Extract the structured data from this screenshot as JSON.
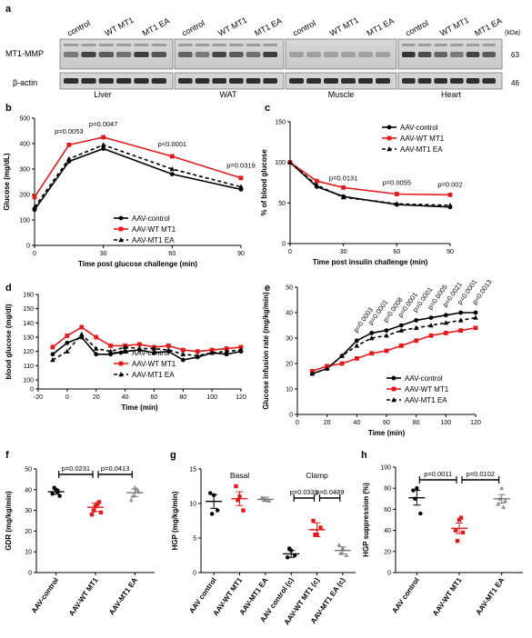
{
  "panel_labels": {
    "a": "a",
    "b": "b",
    "c": "c",
    "d": "d",
    "e": "e",
    "f": "f",
    "g": "g",
    "h": "h"
  },
  "colors": {
    "control": "#000000",
    "wt": "#e31a1c",
    "ea": "#000000",
    "ea_scatter": "#999999"
  },
  "a": {
    "lane_labels": [
      "control",
      "WT MT1",
      "MT1 EA"
    ],
    "row_labels": [
      "MT1-MMP",
      "β-actin"
    ],
    "tissues": [
      "Liver",
      "WAT",
      "Muscle",
      "Heart"
    ],
    "kda_label": "(kDa)",
    "kda_values": [
      "63",
      "46"
    ]
  },
  "series_names": [
    "AAV-control",
    "AAV-WT MT1",
    "AAV-MT1 EA"
  ],
  "chart_data": [
    {
      "panel": "b",
      "type": "line",
      "xlabel": "Time post glucose challenge (min)",
      "ylabel": "Glucose (mg/dL)",
      "xlim": [
        0,
        90
      ],
      "ylim": [
        0,
        500
      ],
      "xticks": [
        0,
        30,
        60,
        90
      ],
      "yticks": [
        0,
        100,
        200,
        300,
        400,
        500
      ],
      "x": [
        0,
        15,
        30,
        60,
        90
      ],
      "series": [
        {
          "name": "AAV-control",
          "values": [
            140,
            330,
            380,
            280,
            220
          ]
        },
        {
          "name": "AAV-WT MT1",
          "values": [
            190,
            395,
            425,
            350,
            265
          ]
        },
        {
          "name": "AAV-MT1 EA",
          "values": [
            150,
            340,
            395,
            300,
            230
          ]
        }
      ],
      "annotations": [
        {
          "text": "p=0.0053",
          "x": 15,
          "y": 440
        },
        {
          "text": "p=0.0047",
          "x": 30,
          "y": 468
        },
        {
          "text": "p<0.0001",
          "x": 60,
          "y": 390
        },
        {
          "text": "p=0.0319",
          "x": 90,
          "y": 305
        }
      ]
    },
    {
      "panel": "c",
      "type": "line",
      "xlabel": "Time post insulin challenge (min)",
      "ylabel": "% of blood glucose",
      "xlim": [
        0,
        90
      ],
      "ylim": [
        0,
        150
      ],
      "xticks": [
        0,
        30,
        60,
        90
      ],
      "yticks": [
        0,
        50,
        100,
        150
      ],
      "x": [
        0,
        15,
        30,
        60,
        90
      ],
      "series": [
        {
          "name": "AAV-control",
          "values": [
            100,
            70,
            58,
            48,
            45
          ]
        },
        {
          "name": "AAV-WT MT1",
          "values": [
            100,
            77,
            69,
            61,
            60
          ]
        },
        {
          "name": "AAV-MT1 EA",
          "values": [
            100,
            72,
            57,
            49,
            47
          ]
        }
      ],
      "annotations": [
        {
          "text": "p=0.0131",
          "x": 30,
          "y": 78
        },
        {
          "text": "p=0.0055",
          "x": 60,
          "y": 72
        },
        {
          "text": "p=0.002",
          "x": 90,
          "y": 70
        }
      ]
    },
    {
      "panel": "d",
      "type": "line",
      "xlabel": "Time (min)",
      "ylabel": "blood glucose (mg/dl)",
      "xlim": [
        -20,
        120
      ],
      "ylim": [
        0,
        160
      ],
      "xticks": [
        -20,
        0,
        20,
        40,
        60,
        80,
        100,
        120
      ],
      "yticks": [
        0,
        100,
        110,
        120,
        130,
        140,
        150,
        160
      ],
      "x": [
        -10,
        0,
        10,
        20,
        30,
        40,
        50,
        60,
        70,
        80,
        90,
        100,
        110,
        120
      ],
      "series": [
        {
          "name": "AAV-control",
          "values": [
            118,
            126,
            130,
            118,
            118,
            120,
            121,
            119,
            120,
            114,
            116,
            119,
            118,
            120
          ]
        },
        {
          "name": "AAV-WT MT1",
          "values": [
            123,
            131,
            137,
            130,
            124,
            124,
            125,
            123,
            124,
            121,
            120,
            121,
            122,
            123
          ]
        },
        {
          "name": "AAV-MT1 EA",
          "values": [
            114,
            120,
            132,
            122,
            120,
            123,
            122,
            122,
            121,
            118,
            117,
            119,
            120,
            121
          ]
        }
      ]
    },
    {
      "panel": "e",
      "type": "line",
      "xlabel": "Time (min)",
      "ylabel": "Glucose infusion rate (mg/kg/min)",
      "xlim": [
        0,
        120
      ],
      "ylim": [
        0,
        50
      ],
      "xticks": [
        0,
        20,
        40,
        60,
        80,
        100,
        120
      ],
      "yticks": [
        0,
        10,
        20,
        30,
        40,
        50
      ],
      "x": [
        10,
        20,
        30,
        40,
        50,
        60,
        70,
        80,
        90,
        100,
        110,
        120
      ],
      "series": [
        {
          "name": "AAV-control",
          "values": [
            16,
            18,
            23,
            29,
            32,
            33,
            35,
            37,
            38,
            39,
            40,
            40
          ]
        },
        {
          "name": "AAV-WT MT1",
          "values": [
            17,
            19,
            20,
            22,
            24,
            25,
            27,
            29,
            31,
            32,
            33,
            34
          ]
        },
        {
          "name": "AAV-MT1 EA",
          "values": [
            16,
            18,
            23,
            27,
            30,
            31,
            33,
            34,
            35,
            36,
            37,
            38
          ]
        }
      ],
      "annotations": [
        "p=0.0003",
        "p=0.0001",
        "p=0.0008",
        "p=0.0001",
        "p=0.0001",
        "p=0.0005",
        "p=0.0021",
        "p=0.0001",
        "p=0.0013"
      ]
    },
    {
      "panel": "f",
      "type": "scatter",
      "ylabel": "GDR (mg/kg/min)",
      "ylim": [
        0,
        50
      ],
      "yticks": [
        0,
        10,
        20,
        30,
        40,
        50
      ],
      "categories": [
        "AAV-control",
        "AAV-WT MT1",
        "AAV-MT1 EA"
      ],
      "means": [
        39,
        31.5,
        38.5
      ],
      "sems": [
        1.2,
        2,
        1.8
      ],
      "points": [
        [
          38,
          40,
          37,
          41,
          39
        ],
        [
          28,
          32,
          34,
          30,
          33,
          29
        ],
        [
          35,
          41,
          39,
          37,
          40
        ]
      ],
      "brackets": [
        {
          "text": "p=0.0231",
          "from": 0,
          "to": 1
        },
        {
          "text": "p=0.0413",
          "from": 1,
          "to": 2
        }
      ]
    },
    {
      "panel": "g",
      "type": "scatter",
      "ylabel": "HGP (mg/kg/min)",
      "ylim": [
        0,
        15
      ],
      "yticks": [
        0,
        5,
        10,
        15
      ],
      "group_labels": [
        "Basal",
        "Clamp"
      ],
      "categories": [
        "AAV control",
        "AAV-WT MT1",
        "AAV-MT1 EA",
        "AAV control (c)",
        "AAV-WT MT1 (c)",
        "AAV-MT1 EA (c)"
      ],
      "means": [
        10.3,
        10.7,
        10.6,
        2.7,
        6.2,
        3.2
      ],
      "sems": [
        1,
        1,
        0.3,
        0.5,
        1,
        0.5
      ],
      "points": [
        [
          11.5,
          11.2,
          9,
          8.5
        ],
        [
          12.5,
          11,
          9,
          10.5
        ],
        [
          10.8,
          10.6,
          10.4,
          10.7
        ],
        [
          2.2,
          3.2,
          2.5,
          3.5
        ],
        [
          7.5,
          5.5,
          6.5,
          5.5
        ],
        [
          4,
          3.5,
          2.5,
          2.8
        ]
      ],
      "brackets": [
        {
          "text": "p=0.0333",
          "from": 3,
          "to": 4
        },
        {
          "text": "p=0.0489",
          "from": 4,
          "to": 5
        }
      ]
    },
    {
      "panel": "h",
      "type": "scatter",
      "ylabel": "HGP suppression (%)",
      "ylim": [
        0,
        100
      ],
      "yticks": [
        0,
        20,
        40,
        60,
        80,
        100
      ],
      "categories": [
        "AAV control",
        "AAV-WT MT1",
        "AAV-MT1 EA"
      ],
      "means": [
        71,
        42,
        70
      ],
      "sems": [
        7,
        5,
        4
      ],
      "points": [
        [
          78,
          80,
          56,
          70
        ],
        [
          40,
          50,
          38,
          30,
          52
        ],
        [
          65,
          80,
          68,
          70,
          62
        ]
      ],
      "brackets": [
        {
          "text": "p=0.0011",
          "from": 0,
          "to": 1
        },
        {
          "text": "p=0.0102",
          "from": 1,
          "to": 2
        }
      ]
    }
  ]
}
